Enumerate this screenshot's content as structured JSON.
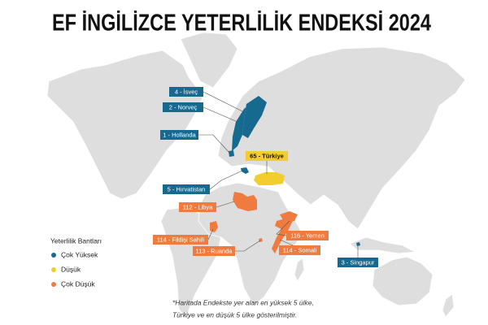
{
  "title": "EF İNGİLİZCE YETERLİLİK ENDEKSİ 2024",
  "legend": {
    "title": "Yeterlilik Bantları",
    "items": [
      {
        "label": "Çok Yüksek",
        "color": "#16698f"
      },
      {
        "label": "Düşük",
        "color": "#f2cd2e"
      },
      {
        "label": "Çok Düşük",
        "color": "#f07b3f"
      }
    ]
  },
  "countries": [
    {
      "label": "4 - İsveç",
      "color": "#16698f"
    },
    {
      "label": "2 - Norveç",
      "color": "#16698f"
    },
    {
      "label": "1 - Hollanda",
      "color": "#16698f"
    },
    {
      "label": "65 - Türkiye",
      "color": "#f2cd2e"
    },
    {
      "label": "5 - Hırvatistan",
      "color": "#16698f"
    },
    {
      "label": "112 - Libya",
      "color": "#f07b3f"
    },
    {
      "label": "114 - Fildişi Sahili",
      "color": "#f07b3f"
    },
    {
      "label": "113 - Ruanda",
      "color": "#f07b3f"
    },
    {
      "label": "116 - Yemen",
      "color": "#f07b3f"
    },
    {
      "label": "114 - Somali",
      "color": "#f07b3f"
    },
    {
      "label": "3 - Singapur",
      "color": "#16698f"
    }
  ],
  "footnote": [
    "*Haritada Endekste yer alan en yüksek 5 ülke,",
    "Türkiye ve en düşük 5 ülke gösterilmiştir."
  ]
}
